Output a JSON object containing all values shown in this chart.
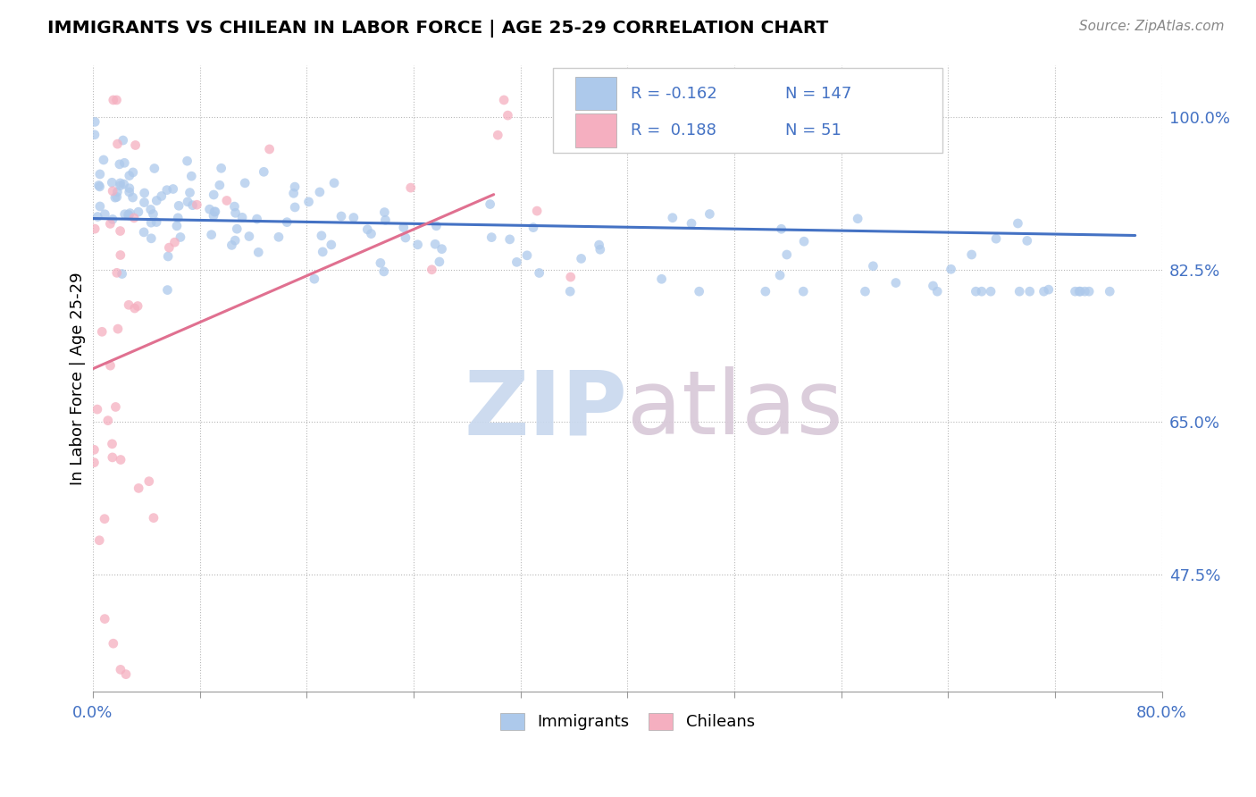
{
  "title": "IMMIGRANTS VS CHILEAN IN LABOR FORCE | AGE 25-29 CORRELATION CHART",
  "source_text": "Source: ZipAtlas.com",
  "ylabel": "In Labor Force | Age 25-29",
  "xlim": [
    0.0,
    0.8
  ],
  "ylim": [
    0.34,
    1.06
  ],
  "yticks_right": [
    0.475,
    0.65,
    0.825,
    1.0
  ],
  "ytick_labels_right": [
    "47.5%",
    "65.0%",
    "82.5%",
    "100.0%"
  ],
  "R_immigrants": -0.162,
  "N_immigrants": 147,
  "R_chileans": 0.188,
  "N_chileans": 51,
  "immigrant_color": "#adc9eb",
  "chilean_color": "#f5afc0",
  "immigrant_line_color": "#4472c4",
  "chilean_line_color": "#e07090",
  "legend_label_immigrants": "Immigrants",
  "legend_label_chileans": "Chileans",
  "background_color": "#ffffff",
  "watermark_zip_color": "#c8d8ee",
  "watermark_atlas_color": "#d8c8d8"
}
